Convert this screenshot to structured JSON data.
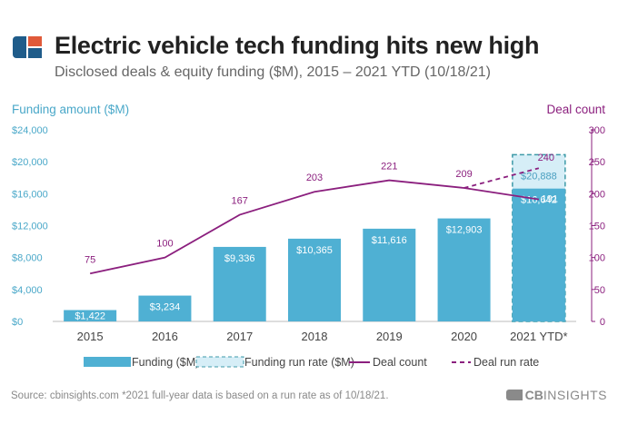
{
  "header": {
    "title": "Electric vehicle tech funding hits new high",
    "subtitle": "Disclosed deals & equity funding ($M), 2015 – 2021 YTD (10/18/21)",
    "logo_icon": "cb-insights-logo-icon"
  },
  "colors": {
    "bar": "#4fb0d3",
    "runrate_fill": "#d6eef7",
    "runrate_border": "#3d9aa8",
    "line": "#8b1f7e",
    "left_axis": "#4aa8c9",
    "right_axis": "#8b1f7e",
    "logo_blue": "#1f5c8a",
    "logo_red": "#e05a3a"
  },
  "chart_data": {
    "type": "bar",
    "categories": [
      "2015",
      "2016",
      "2017",
      "2018",
      "2019",
      "2020",
      "2021 YTD*"
    ],
    "series": [
      {
        "name": "Funding ($M)",
        "type": "bar",
        "axis": "left",
        "values": [
          1422,
          3234,
          9336,
          10365,
          11616,
          12903,
          16642
        ],
        "labels": [
          "$1,422",
          "$3,234",
          "$9,336",
          "$10,365",
          "$11,616",
          "$12,903",
          "$16,642"
        ]
      },
      {
        "name": "Funding run rate ($M)",
        "type": "bar-dashed",
        "axis": "left",
        "values": [
          null,
          null,
          null,
          null,
          null,
          null,
          20888
        ],
        "labels": [
          "",
          "",
          "",
          "",
          "",
          "",
          "$20,888"
        ]
      },
      {
        "name": "Deal count",
        "type": "line",
        "axis": "right",
        "values": [
          75,
          100,
          167,
          203,
          221,
          209,
          191
        ],
        "labels": [
          "75",
          "100",
          "167",
          "203",
          "221",
          "209",
          "191"
        ]
      },
      {
        "name": "Deal run rate",
        "type": "line-dashed",
        "axis": "right",
        "values": [
          null,
          null,
          null,
          null,
          null,
          209,
          240
        ],
        "labels": [
          "",
          "",
          "",
          "",
          "",
          "",
          "240"
        ]
      }
    ],
    "ylabel_left": "Funding amount ($M)",
    "ylabel_right": "Deal count",
    "ylim_left": [
      0,
      24000
    ],
    "ylim_right": [
      0,
      300
    ],
    "yticks_left": [
      "$0",
      "$4,000",
      "$8,000",
      "$12,000",
      "$16,000",
      "$20,000",
      "$24,000"
    ],
    "yticks_right": [
      "0",
      "50",
      "100",
      "150",
      "200",
      "250",
      "300"
    ],
    "grid": false,
    "legend_position": "bottom"
  },
  "footer": {
    "source": "Source: cbinsights.com  *2021 full-year data is based on a run rate as of 10/18/21.",
    "brand_cb": "CB",
    "brand_rest": "INSIGHTS"
  }
}
